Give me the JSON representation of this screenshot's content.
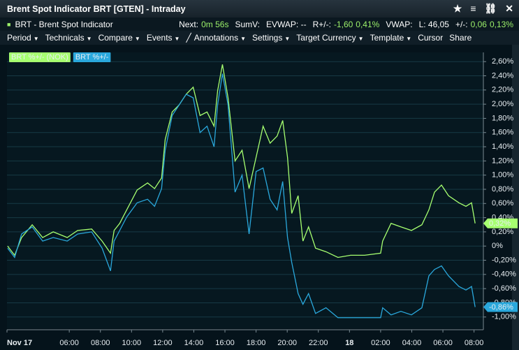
{
  "window": {
    "title": "Brent Spot Indicator BRT [GTEN] - Intraday"
  },
  "info_bar": {
    "instrument": "BRT - Brent Spot Indicator",
    "next_label": "Next:",
    "next_value": "0m 56s",
    "sumv": "SumV:",
    "evwap": "EVWAP: --",
    "r_label": "R+/-:",
    "r_change": "-1,60",
    "r_pct": "0,41%",
    "vwap": "VWAP:",
    "last": "L: 46,05",
    "chg_label": "+/-:",
    "chg": "0,06",
    "chg_pct": "0,13%"
  },
  "menu": [
    "Period",
    "Technicals",
    "Compare",
    "Events",
    "Annotations",
    "Settings",
    "Target Currency",
    "Template",
    "Cursor",
    "Share"
  ],
  "chart_data": {
    "type": "line",
    "x": [
      2.04,
      2.49,
      2.94,
      3.62,
      4.29,
      4.97,
      5.87,
      6.54,
      7.44,
      8.11,
      8.65,
      8.88,
      9.24,
      9.69,
      10.36,
      11.03,
      11.48,
      11.93,
      12.16,
      12.61,
      13.06,
      13.51,
      13.96,
      14.4,
      14.85,
      15.3,
      15.53,
      15.84,
      16.2,
      16.65,
      17.1,
      17.55,
      18.0,
      18.45,
      18.9,
      19.35,
      19.71,
      20.02,
      20.29,
      20.7,
      21.01,
      21.37,
      21.82,
      22.49,
      23.26,
      24.07,
      24.97,
      26.0,
      26.13,
      26.67,
      27.3,
      27.98,
      28.65,
      29.1,
      29.46,
      29.91,
      30.36,
      31.03,
      31.48,
      31.84,
      32.07
    ],
    "series": [
      {
        "name": "BRT %+/- (NOK)",
        "color": "#a6ff70",
        "values": [
          0.0,
          -0.13,
          0.12,
          0.3,
          0.12,
          0.2,
          0.12,
          0.22,
          0.24,
          0.07,
          -0.1,
          0.22,
          0.32,
          0.51,
          0.79,
          0.89,
          0.81,
          0.96,
          1.5,
          1.89,
          1.99,
          2.14,
          2.24,
          1.84,
          1.89,
          1.69,
          2.19,
          2.56,
          2.09,
          1.2,
          1.35,
          0.81,
          1.25,
          1.69,
          1.45,
          1.55,
          1.77,
          1.25,
          0.46,
          0.71,
          0.07,
          0.27,
          -0.03,
          -0.08,
          -0.16,
          -0.13,
          -0.13,
          -0.1,
          0.07,
          0.32,
          0.27,
          0.22,
          0.3,
          0.51,
          0.76,
          0.86,
          0.71,
          0.61,
          0.56,
          0.61,
          0.32
        ],
        "value_labels": [
          null,
          null,
          null,
          null,
          null,
          null,
          null,
          null,
          null,
          null,
          null,
          null,
          null,
          null,
          null,
          null,
          null,
          null,
          null,
          null,
          null,
          null,
          null,
          null,
          null,
          null,
          null,
          null,
          null,
          null,
          null,
          null,
          null,
          null,
          null,
          null,
          null,
          null,
          null,
          null,
          null,
          null,
          null,
          null,
          null,
          null,
          null,
          null,
          null,
          null,
          null,
          null,
          null,
          null,
          null,
          null,
          null,
          null,
          null,
          null,
          "0,32%"
        ]
      },
      {
        "name": "BRT %+/-",
        "color": "#2aa8dc",
        "values": [
          -0.03,
          -0.16,
          0.17,
          0.27,
          0.07,
          0.12,
          0.07,
          0.17,
          0.2,
          -0.03,
          -0.35,
          0.07,
          0.22,
          0.41,
          0.61,
          0.66,
          0.56,
          0.81,
          1.35,
          1.84,
          1.99,
          2.14,
          2.09,
          1.6,
          1.69,
          1.4,
          1.99,
          2.43,
          1.99,
          0.76,
          1.0,
          0.17,
          1.05,
          1.1,
          0.66,
          0.51,
          0.91,
          0.12,
          -0.23,
          -0.67,
          -0.82,
          -0.67,
          -0.95,
          -0.87,
          -1.01,
          -1.01,
          -1.01,
          -1.01,
          -0.87,
          -0.97,
          -0.92,
          -0.97,
          -0.87,
          -0.42,
          -0.33,
          -0.28,
          -0.42,
          -0.57,
          -0.62,
          -0.57,
          -0.86
        ],
        "value_labels": [
          null,
          null,
          null,
          null,
          null,
          null,
          null,
          null,
          null,
          null,
          null,
          null,
          null,
          null,
          null,
          null,
          null,
          null,
          null,
          null,
          null,
          null,
          null,
          null,
          null,
          null,
          null,
          null,
          null,
          null,
          null,
          null,
          null,
          null,
          null,
          null,
          null,
          null,
          null,
          null,
          null,
          null,
          null,
          null,
          null,
          null,
          null,
          null,
          null,
          null,
          null,
          null,
          null,
          null,
          null,
          null,
          null,
          null,
          null,
          null,
          "-0,86%"
        ]
      }
    ],
    "xlim": [
      2,
      32.6
    ],
    "xticks": [
      {
        "value": 2,
        "label": "Nov 17"
      },
      {
        "value": 6,
        "label": "06:00"
      },
      {
        "value": 8,
        "label": "08:00"
      },
      {
        "value": 10,
        "label": "10:00"
      },
      {
        "value": 12,
        "label": "12:00"
      },
      {
        "value": 14,
        "label": "14:00"
      },
      {
        "value": 16,
        "label": "16:00"
      },
      {
        "value": 18,
        "label": "18:00"
      },
      {
        "value": 20,
        "label": "20:00"
      },
      {
        "value": 22,
        "label": "22:00"
      },
      {
        "value": 24,
        "label": "18"
      },
      {
        "value": 26,
        "label": "02:00"
      },
      {
        "value": 28,
        "label": "04:00"
      },
      {
        "value": 30,
        "label": "06:00"
      },
      {
        "value": 32,
        "label": "08:00"
      }
    ],
    "ylim": [
      -1.16,
      2.73
    ],
    "yticks": [
      {
        "value": 2.6,
        "label": "2,60%"
      },
      {
        "value": 2.4,
        "label": "2,40%"
      },
      {
        "value": 2.2,
        "label": "2,20%"
      },
      {
        "value": 2.0,
        "label": "2,00%"
      },
      {
        "value": 1.8,
        "label": "1,80%"
      },
      {
        "value": 1.6,
        "label": "1,60%"
      },
      {
        "value": 1.4,
        "label": "1,40%"
      },
      {
        "value": 1.2,
        "label": "1,20%"
      },
      {
        "value": 1.0,
        "label": "1,00%"
      },
      {
        "value": 0.8,
        "label": "0,80%"
      },
      {
        "value": 0.6,
        "label": "0,60%"
      },
      {
        "value": 0.4,
        "label": "0,40%"
      },
      {
        "value": 0.2,
        "label": "0,20%"
      },
      {
        "value": 0,
        "label": "0%"
      },
      {
        "value": -0.2,
        "label": "-0,20%"
      },
      {
        "value": -0.4,
        "label": "-0,40%"
      },
      {
        "value": -0.6,
        "label": "-0,60%"
      },
      {
        "value": -0.8,
        "label": "-0,80%"
      },
      {
        "value": -1.0,
        "label": "-1,00%"
      }
    ],
    "grid": true,
    "legend": "top-left"
  }
}
